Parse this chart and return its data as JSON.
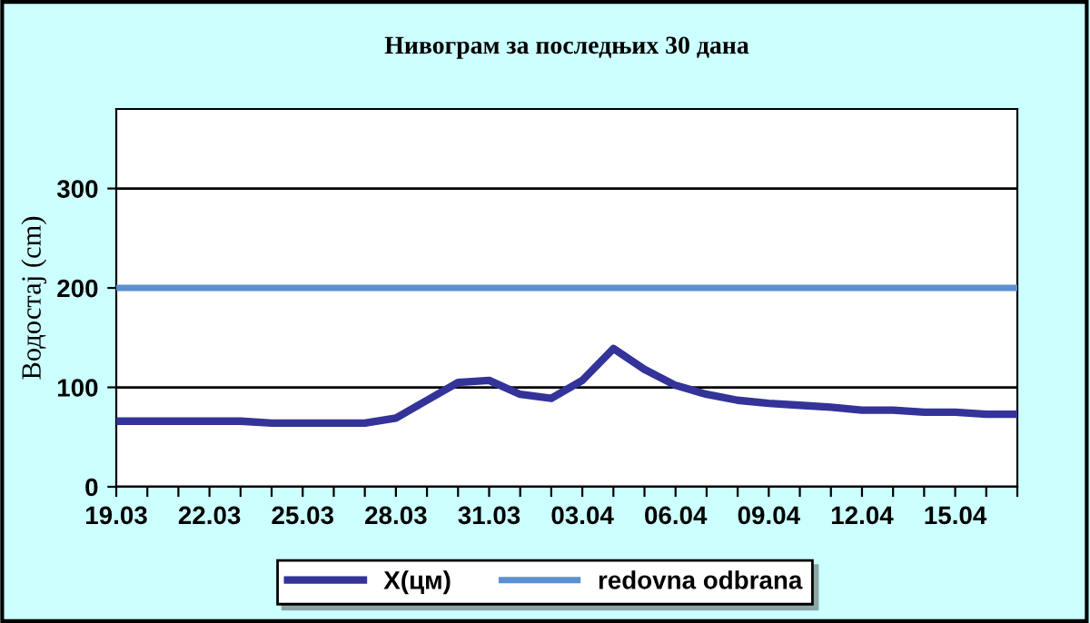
{
  "chart_data": {
    "type": "line",
    "title": "Нивограм за последњих 30 дана",
    "ylabel": "Водостај (cm)",
    "categories": [
      "19.03",
      null,
      null,
      "22.03",
      null,
      null,
      "25.03",
      null,
      null,
      "28.03",
      null,
      null,
      "31.03",
      null,
      null,
      "03.04",
      null,
      null,
      "06.04",
      null,
      null,
      "09.04",
      null,
      null,
      "12.04",
      null,
      null,
      "15.04",
      null,
      null
    ],
    "series": [
      {
        "name": "X(цм)",
        "color": "#333399",
        "values": [
          66,
          66,
          66,
          66,
          66,
          64,
          64,
          64,
          64,
          69,
          87,
          105,
          107,
          93,
          89,
          107,
          139,
          118,
          102,
          93,
          87,
          84,
          82,
          80,
          77,
          77,
          75,
          75,
          73,
          73
        ]
      },
      {
        "name": "redovna odbrana",
        "color": "#5b8fd0",
        "values": [
          200,
          200,
          200,
          200,
          200,
          200,
          200,
          200,
          200,
          200,
          200,
          200,
          200,
          200,
          200,
          200,
          200,
          200,
          200,
          200,
          200,
          200,
          200,
          200,
          200,
          200,
          200,
          200,
          200,
          200
        ]
      }
    ],
    "ylim": [
      0,
      380
    ],
    "yticks": [
      0,
      100,
      200,
      300
    ],
    "grid": "y",
    "legend": "bottom",
    "marker": "none",
    "line_style": "solid"
  }
}
